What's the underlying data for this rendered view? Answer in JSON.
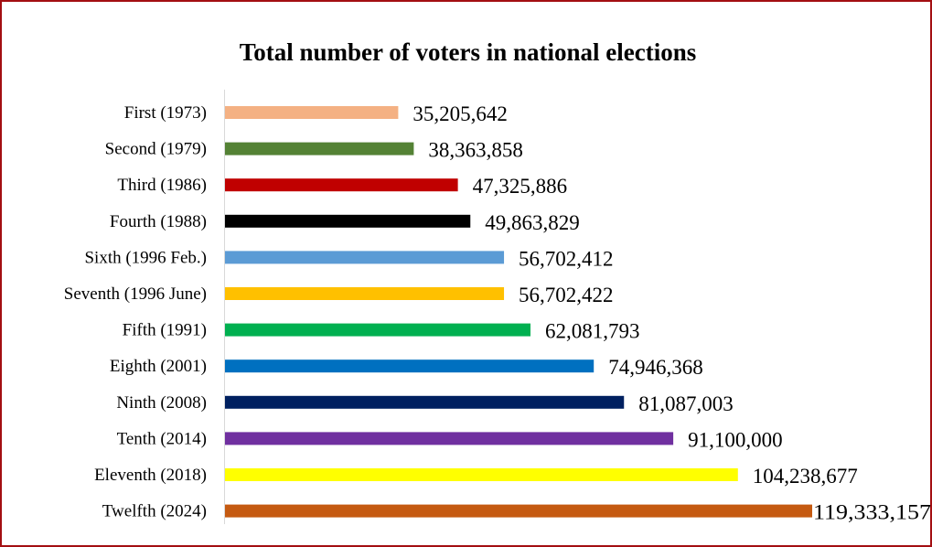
{
  "chart_data": {
    "type": "bar",
    "orientation": "horizontal",
    "title": "Total number of voters in national elections",
    "categories": [
      "First (1973)",
      "Second (1979)",
      "Third (1986)",
      "Fourth (1988)",
      "Sixth (1996 Feb.)",
      "Seventh (1996 June)",
      "Fifth (1991)",
      "Eighth (2001)",
      "Ninth (2008)",
      "Tenth (2014)",
      "Eleventh (2018)",
      "Twelfth (2024)"
    ],
    "values": [
      35205642,
      38363858,
      47325886,
      49863829,
      56702412,
      56702422,
      62081793,
      74946368,
      81087003,
      91100000,
      104238677,
      119333157
    ],
    "value_labels": [
      "35,205,642",
      "38,363,858",
      "47,325,886",
      "49,863,829",
      "56,702,412",
      "56,702,422",
      "62,081,793",
      "74,946,368",
      "81,087,003",
      "91,100,000",
      "104,238,677",
      "119,333,157"
    ],
    "colors": [
      "#f4b183",
      "#548235",
      "#c00000",
      "#000000",
      "#5b9bd5",
      "#ffc000",
      "#00b050",
      "#0070c0",
      "#002060",
      "#7030a0",
      "#ffff00",
      "#c55a11"
    ],
    "xlim": [
      0,
      119333157
    ],
    "grid": false,
    "legend": "none",
    "border_color": "#a30f12"
  }
}
